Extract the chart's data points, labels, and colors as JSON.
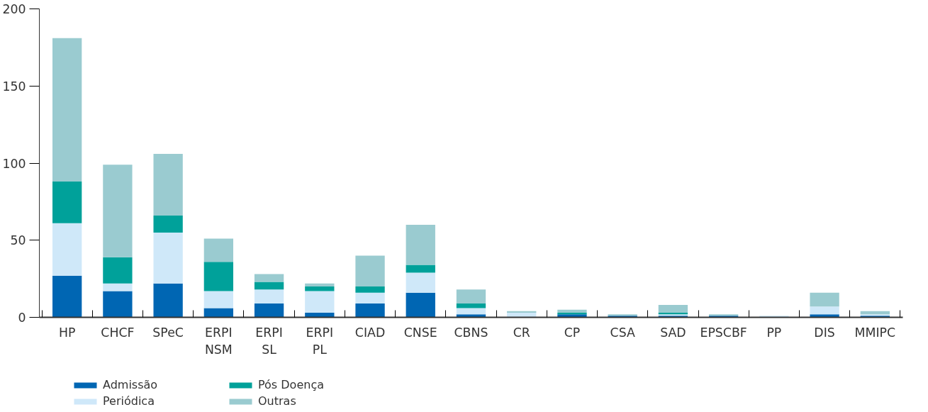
{
  "chart_data": {
    "type": "bar",
    "stacked": true,
    "categories": [
      "HP",
      "CHCF",
      "SPeC",
      "ERPI\nNSM",
      "ERPI\nSL",
      "ERPI\nPL",
      "CIAD",
      "CNSE",
      "CBNS",
      "CR",
      "CP",
      "CSA",
      "SAD",
      "EPSCBF",
      "PP",
      "DIS",
      "MMIPC"
    ],
    "series": [
      {
        "name": "Admissão",
        "color": "#0066b3",
        "values": [
          27,
          17,
          22,
          6,
          9,
          3,
          9,
          16,
          2,
          0,
          2,
          1,
          1,
          1,
          0,
          2,
          1
        ]
      },
      {
        "name": "Periódica",
        "color": "#cfe8f9",
        "values": [
          34,
          5,
          33,
          11,
          9,
          14,
          7,
          13,
          4,
          3,
          0,
          0,
          1,
          0,
          1,
          5,
          1
        ]
      },
      {
        "name": "Pós Doença",
        "color": "#00a19a",
        "values": [
          27,
          17,
          11,
          19,
          5,
          3,
          4,
          5,
          3,
          0,
          1,
          0,
          1,
          0,
          0,
          0,
          0
        ]
      },
      {
        "name": "Outras",
        "color": "#9acbd0",
        "values": [
          93,
          60,
          40,
          15,
          5,
          2,
          20,
          26,
          9,
          1,
          2,
          1,
          5,
          1,
          0,
          9,
          2
        ]
      }
    ],
    "ylim": [
      0,
      200
    ],
    "yticks": [
      0,
      50,
      100,
      150,
      200
    ],
    "grid": false,
    "legend": "bottom"
  }
}
